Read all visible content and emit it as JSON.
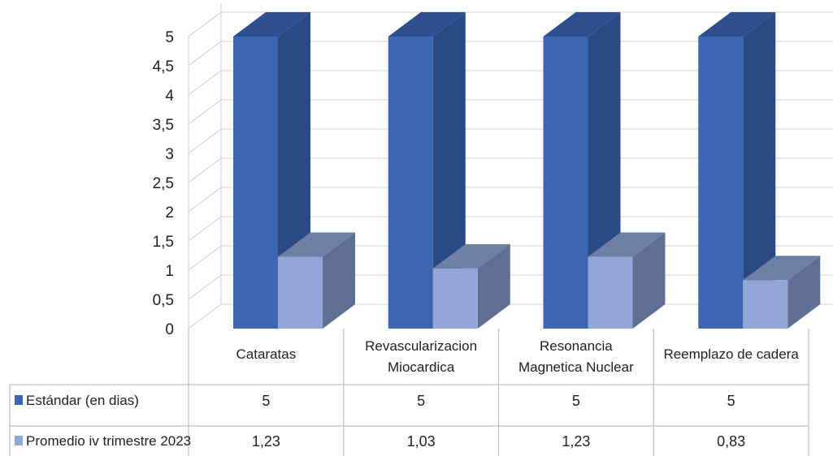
{
  "chart_data": {
    "type": "bar",
    "title": "",
    "xlabel": "",
    "ylabel": "",
    "ylim": [
      0,
      5
    ],
    "yticks": [
      "0",
      "0,5",
      "1",
      "1,5",
      "2",
      "2,5",
      "3",
      "3,5",
      "4",
      "4,5",
      "5"
    ],
    "grid": true,
    "legend": "data-table",
    "style": "3d-column",
    "categories": [
      [
        "Cataratas"
      ],
      [
        "Revascularizacion",
        "Miocardica"
      ],
      [
        "Resonancia",
        "Magnetica Nuclear"
      ],
      [
        "Reemplazo de cadera"
      ]
    ],
    "series": [
      {
        "name": "Estándar (en dias)",
        "values": [
          5,
          5,
          5,
          5
        ],
        "labels": [
          "5",
          "5",
          "5",
          "5"
        ],
        "color": "#3d66b2",
        "side": "#2a4a85",
        "top": "#2d4f8f"
      },
      {
        "name": "Promedio iv trimestre 2023",
        "values": [
          1.23,
          1.03,
          1.23,
          0.83
        ],
        "labels": [
          "1,23",
          "1,03",
          "1,23",
          "0,83"
        ],
        "color": "#93a6d8",
        "side": "#5f6f94",
        "top": "#6e7fa6"
      }
    ]
  }
}
